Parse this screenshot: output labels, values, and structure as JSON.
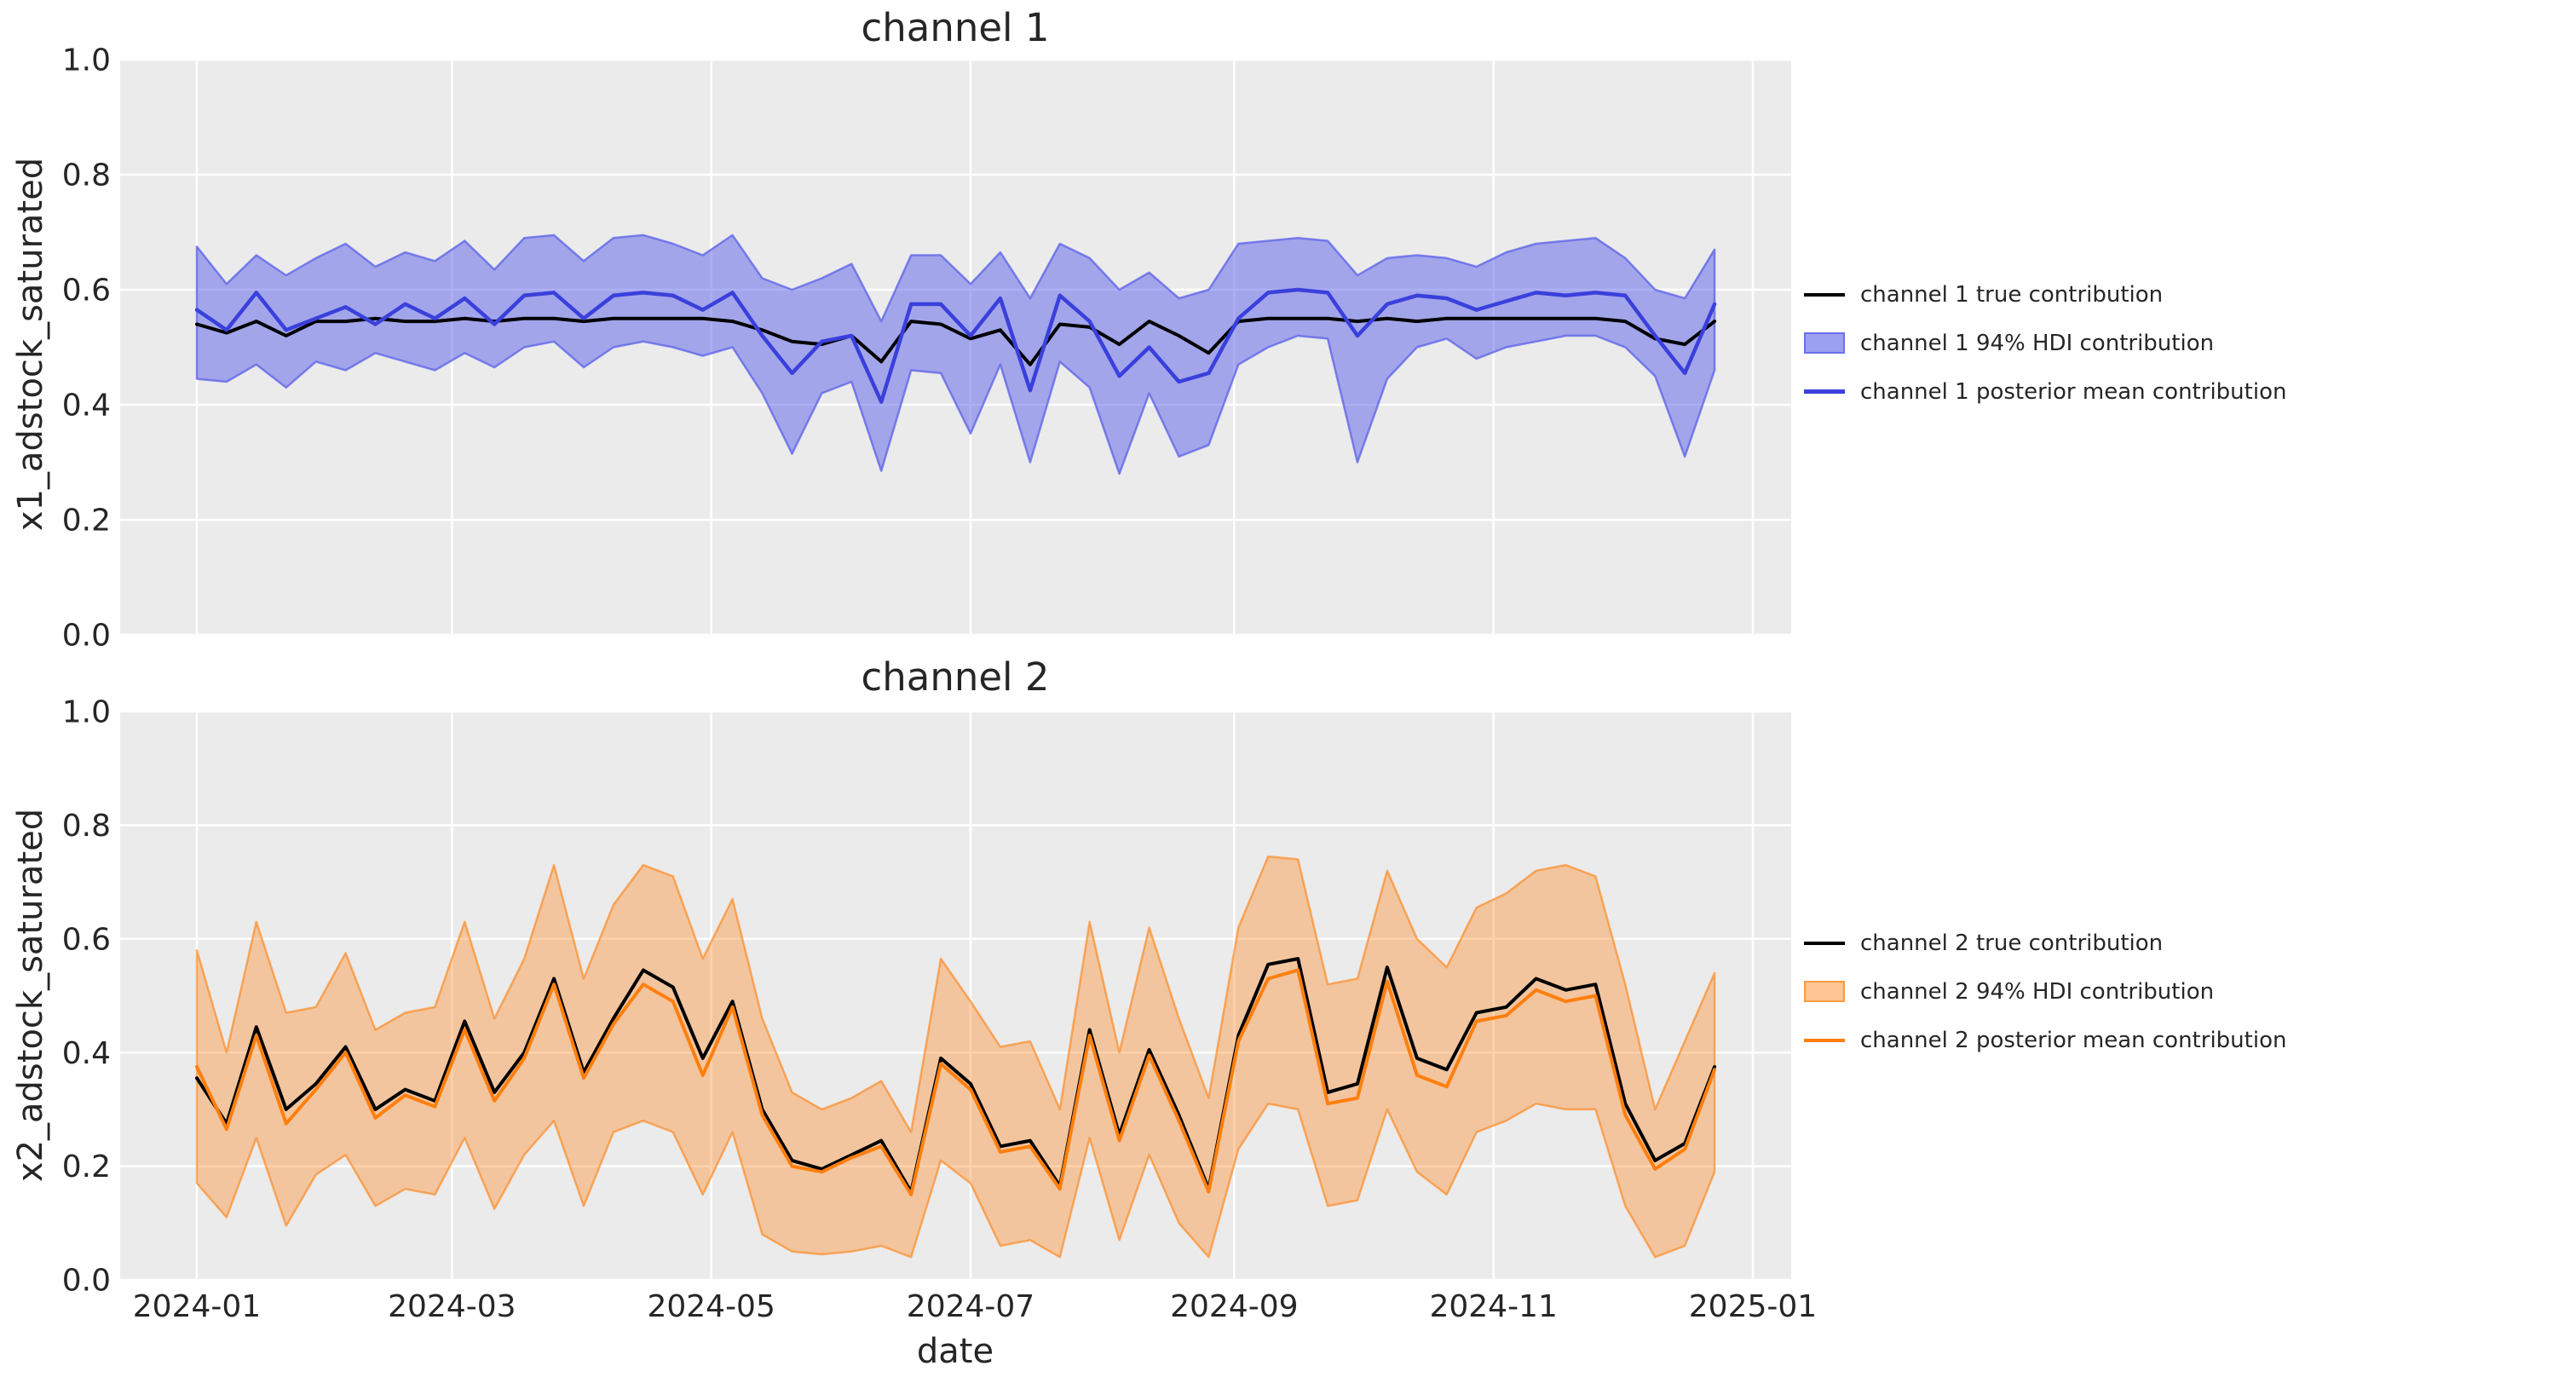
{
  "style": {
    "figure_bg": "#ffffff",
    "axes_bg": "#ebebeb",
    "grid_color": "#ffffff",
    "text_color": "#262626"
  },
  "chart_data": [
    {
      "type": "line",
      "title": "channel 1",
      "ylabel": "x1_adstock_saturated",
      "xlabel": "date",
      "ylim": [
        0.0,
        1.0
      ],
      "yticks": [
        1.0,
        0.8,
        0.6,
        0.4,
        0.2,
        0.0
      ],
      "xticks": [
        "2024-01",
        "2024-03",
        "2024-05",
        "2024-07",
        "2024-09",
        "2024-11",
        "2025-01"
      ],
      "grid": true,
      "legend_position": "outside center right",
      "x": [
        "2024-01-01",
        "2024-01-08",
        "2024-01-15",
        "2024-01-22",
        "2024-01-29",
        "2024-02-05",
        "2024-02-12",
        "2024-02-19",
        "2024-02-26",
        "2024-03-04",
        "2024-03-11",
        "2024-03-18",
        "2024-03-25",
        "2024-04-01",
        "2024-04-08",
        "2024-04-15",
        "2024-04-22",
        "2024-04-29",
        "2024-05-06",
        "2024-05-13",
        "2024-05-20",
        "2024-05-27",
        "2024-06-03",
        "2024-06-10",
        "2024-06-17",
        "2024-06-24",
        "2024-07-01",
        "2024-07-08",
        "2024-07-15",
        "2024-07-22",
        "2024-07-29",
        "2024-08-05",
        "2024-08-12",
        "2024-08-19",
        "2024-08-26",
        "2024-09-02",
        "2024-09-09",
        "2024-09-16",
        "2024-09-23",
        "2024-09-30",
        "2024-10-07",
        "2024-10-14",
        "2024-10-21",
        "2024-10-28",
        "2024-11-04",
        "2024-11-11",
        "2024-11-18",
        "2024-11-25",
        "2024-12-02",
        "2024-12-09",
        "2024-12-16",
        "2024-12-23"
      ],
      "series": [
        {
          "name": "channel 1 true contribution",
          "type": "line",
          "color": "#000000",
          "width": 4,
          "values": [
            0.54,
            0.525,
            0.545,
            0.52,
            0.545,
            0.545,
            0.55,
            0.545,
            0.545,
            0.55,
            0.545,
            0.55,
            0.55,
            0.545,
            0.55,
            0.55,
            0.55,
            0.55,
            0.545,
            0.53,
            0.51,
            0.505,
            0.52,
            0.475,
            0.545,
            0.54,
            0.515,
            0.53,
            0.47,
            0.54,
            0.535,
            0.505,
            0.545,
            0.52,
            0.49,
            0.545,
            0.55,
            0.55,
            0.55,
            0.545,
            0.55,
            0.545,
            0.55,
            0.55,
            0.55,
            0.55,
            0.55,
            0.55,
            0.545,
            0.515,
            0.505,
            0.545
          ]
        },
        {
          "name": "channel 1 94% HDI contribution",
          "type": "band",
          "color": "#5a60e8",
          "fill_opacity": 0.5,
          "edge_color": "#5a60e8",
          "edge_opacity": 0.75,
          "lower": [
            0.445,
            0.44,
            0.47,
            0.43,
            0.475,
            0.46,
            0.49,
            0.475,
            0.46,
            0.49,
            0.465,
            0.5,
            0.51,
            0.465,
            0.5,
            0.51,
            0.5,
            0.485,
            0.5,
            0.42,
            0.315,
            0.42,
            0.44,
            0.285,
            0.46,
            0.455,
            0.35,
            0.47,
            0.3,
            0.475,
            0.43,
            0.28,
            0.42,
            0.31,
            0.33,
            0.47,
            0.5,
            0.52,
            0.515,
            0.3,
            0.445,
            0.5,
            0.515,
            0.48,
            0.5,
            0.51,
            0.52,
            0.52,
            0.5,
            0.45,
            0.31,
            0.46
          ],
          "upper": [
            0.675,
            0.61,
            0.66,
            0.625,
            0.655,
            0.68,
            0.64,
            0.665,
            0.65,
            0.685,
            0.635,
            0.69,
            0.695,
            0.65,
            0.69,
            0.695,
            0.68,
            0.66,
            0.695,
            0.62,
            0.6,
            0.62,
            0.645,
            0.545,
            0.66,
            0.66,
            0.61,
            0.665,
            0.585,
            0.68,
            0.655,
            0.6,
            0.63,
            0.585,
            0.6,
            0.68,
            0.685,
            0.69,
            0.685,
            0.625,
            0.655,
            0.66,
            0.655,
            0.64,
            0.665,
            0.68,
            0.685,
            0.69,
            0.655,
            0.6,
            0.585,
            0.67
          ]
        },
        {
          "name": "channel 1 posterior mean contribution",
          "type": "line",
          "color": "#3a40dc",
          "width": 4.5,
          "values": [
            0.565,
            0.53,
            0.595,
            0.53,
            0.55,
            0.57,
            0.54,
            0.575,
            0.55,
            0.585,
            0.54,
            0.59,
            0.595,
            0.55,
            0.59,
            0.595,
            0.59,
            0.565,
            0.595,
            0.52,
            0.455,
            0.51,
            0.52,
            0.405,
            0.575,
            0.575,
            0.52,
            0.585,
            0.425,
            0.59,
            0.545,
            0.45,
            0.5,
            0.44,
            0.455,
            0.55,
            0.595,
            0.6,
            0.595,
            0.52,
            0.575,
            0.59,
            0.585,
            0.565,
            0.58,
            0.595,
            0.59,
            0.595,
            0.59,
            0.52,
            0.455,
            0.575
          ]
        }
      ]
    },
    {
      "type": "line",
      "title": "channel 2",
      "ylabel": "x2_adstock_saturated",
      "xlabel": "date",
      "ylim": [
        0.0,
        1.0
      ],
      "yticks": [
        1.0,
        0.8,
        0.6,
        0.4,
        0.2,
        0.0
      ],
      "xticks": [
        "2024-01",
        "2024-03",
        "2024-05",
        "2024-07",
        "2024-09",
        "2024-11",
        "2025-01"
      ],
      "grid": true,
      "legend_position": "outside center right",
      "x": [
        "2024-01-01",
        "2024-01-08",
        "2024-01-15",
        "2024-01-22",
        "2024-01-29",
        "2024-02-05",
        "2024-02-12",
        "2024-02-19",
        "2024-02-26",
        "2024-03-04",
        "2024-03-11",
        "2024-03-18",
        "2024-03-25",
        "2024-04-01",
        "2024-04-08",
        "2024-04-15",
        "2024-04-22",
        "2024-04-29",
        "2024-05-06",
        "2024-05-13",
        "2024-05-20",
        "2024-05-27",
        "2024-06-03",
        "2024-06-10",
        "2024-06-17",
        "2024-06-24",
        "2024-07-01",
        "2024-07-08",
        "2024-07-15",
        "2024-07-22",
        "2024-07-29",
        "2024-08-05",
        "2024-08-12",
        "2024-08-19",
        "2024-08-26",
        "2024-09-02",
        "2024-09-09",
        "2024-09-16",
        "2024-09-23",
        "2024-09-30",
        "2024-10-07",
        "2024-10-14",
        "2024-10-21",
        "2024-10-28",
        "2024-11-04",
        "2024-11-11",
        "2024-11-18",
        "2024-11-25",
        "2024-12-02",
        "2024-12-09",
        "2024-12-16",
        "2024-12-23"
      ],
      "series": [
        {
          "name": "channel 2 true contribution",
          "type": "line",
          "color": "#000000",
          "width": 4,
          "values": [
            0.355,
            0.275,
            0.445,
            0.3,
            0.345,
            0.41,
            0.3,
            0.335,
            0.315,
            0.455,
            0.33,
            0.4,
            0.53,
            0.365,
            0.46,
            0.545,
            0.515,
            0.39,
            0.49,
            0.3,
            0.21,
            0.195,
            0.22,
            0.245,
            0.155,
            0.39,
            0.345,
            0.235,
            0.245,
            0.165,
            0.44,
            0.255,
            0.405,
            0.29,
            0.16,
            0.43,
            0.555,
            0.565,
            0.33,
            0.345,
            0.55,
            0.39,
            0.37,
            0.47,
            0.48,
            0.53,
            0.51,
            0.52,
            0.31,
            0.21,
            0.24,
            0.375
          ]
        },
        {
          "name": "channel 2 94% HDI contribution",
          "type": "band",
          "color": "#ff7f0e",
          "fill_opacity": 0.35,
          "edge_color": "#ff7f0e",
          "edge_opacity": 0.6,
          "lower": [
            0.17,
            0.11,
            0.25,
            0.095,
            0.185,
            0.22,
            0.13,
            0.16,
            0.15,
            0.25,
            0.125,
            0.22,
            0.28,
            0.13,
            0.26,
            0.28,
            0.26,
            0.15,
            0.26,
            0.08,
            0.05,
            0.045,
            0.05,
            0.06,
            0.04,
            0.21,
            0.17,
            0.06,
            0.07,
            0.04,
            0.25,
            0.07,
            0.22,
            0.1,
            0.04,
            0.23,
            0.31,
            0.3,
            0.13,
            0.14,
            0.3,
            0.19,
            0.15,
            0.26,
            0.28,
            0.31,
            0.3,
            0.3,
            0.13,
            0.04,
            0.06,
            0.19
          ],
          "upper": [
            0.58,
            0.4,
            0.63,
            0.47,
            0.48,
            0.575,
            0.44,
            0.47,
            0.48,
            0.63,
            0.46,
            0.565,
            0.73,
            0.53,
            0.66,
            0.73,
            0.71,
            0.565,
            0.67,
            0.46,
            0.33,
            0.3,
            0.32,
            0.35,
            0.26,
            0.565,
            0.49,
            0.41,
            0.42,
            0.3,
            0.63,
            0.4,
            0.62,
            0.46,
            0.32,
            0.62,
            0.745,
            0.74,
            0.52,
            0.53,
            0.72,
            0.6,
            0.55,
            0.655,
            0.68,
            0.72,
            0.73,
            0.71,
            0.52,
            0.3,
            0.42,
            0.54
          ]
        },
        {
          "name": "channel 2 posterior mean contribution",
          "type": "line",
          "color": "#ff7f0e",
          "width": 4,
          "values": [
            0.375,
            0.265,
            0.43,
            0.275,
            0.335,
            0.4,
            0.285,
            0.325,
            0.305,
            0.44,
            0.315,
            0.39,
            0.52,
            0.355,
            0.45,
            0.52,
            0.49,
            0.36,
            0.48,
            0.29,
            0.2,
            0.19,
            0.215,
            0.235,
            0.15,
            0.38,
            0.335,
            0.225,
            0.235,
            0.16,
            0.43,
            0.245,
            0.395,
            0.28,
            0.155,
            0.42,
            0.53,
            0.545,
            0.31,
            0.32,
            0.525,
            0.36,
            0.34,
            0.455,
            0.465,
            0.51,
            0.49,
            0.5,
            0.29,
            0.195,
            0.23,
            0.37
          ]
        }
      ]
    }
  ]
}
